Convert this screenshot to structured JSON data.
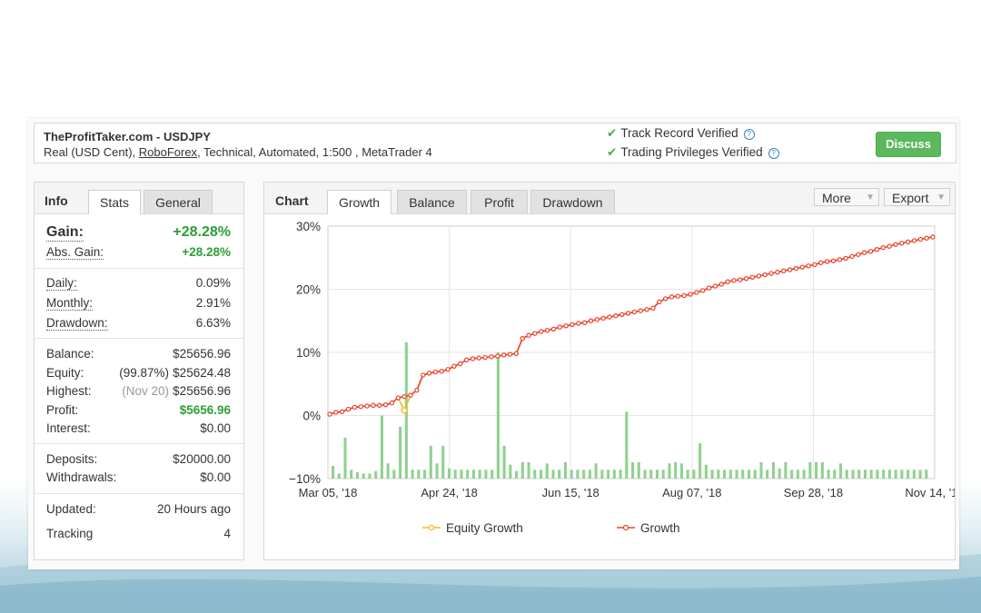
{
  "header": {
    "title": "TheProfitTaker.com - USDJPY",
    "subtitle_prefix": "Real (USD Cent), ",
    "broker_link": "RoboForex",
    "subtitle_suffix": ", Technical, Automated, 1:500 , MetaTrader 4",
    "verification": [
      "Track Record Verified",
      "Trading Privileges Verified"
    ],
    "discuss_label": "Discuss"
  },
  "left_tabs": {
    "heading": "Info",
    "tabs": [
      "Stats",
      "General"
    ],
    "active": "Stats"
  },
  "stats": {
    "gain": {
      "label": "Gain:",
      "value": "+28.28%"
    },
    "abs_gain": {
      "label": "Abs. Gain:",
      "value": "+28.28%"
    },
    "daily": {
      "label": "Daily:",
      "value": "0.09%"
    },
    "monthly": {
      "label": "Monthly:",
      "value": "2.91%"
    },
    "drawdown": {
      "label": "Drawdown:",
      "value": "6.63%"
    },
    "balance": {
      "label": "Balance:",
      "value": "$25656.96"
    },
    "equity": {
      "label": "Equity:",
      "pct": "(99.87%)",
      "value": "$25624.48"
    },
    "highest": {
      "label": "Highest:",
      "pct": "(Nov 20)",
      "value": "$25656.96"
    },
    "profit": {
      "label": "Profit:",
      "value": "$5656.96"
    },
    "interest": {
      "label": "Interest:",
      "value": "$0.00"
    },
    "deposits": {
      "label": "Deposits:",
      "value": "$20000.00"
    },
    "withdrawals": {
      "label": "Withdrawals:",
      "value": "$0.00"
    },
    "updated": {
      "label": "Updated:",
      "value": "20 Hours ago"
    },
    "tracking": {
      "label": "Tracking",
      "value": "4"
    }
  },
  "right_tabs": {
    "heading": "Chart",
    "tabs": [
      "Growth",
      "Balance",
      "Profit",
      "Drawdown"
    ],
    "active": "Growth",
    "more_label": "More",
    "export_label": "Export"
  },
  "colors": {
    "growth": "#e8452c",
    "equity": "#f5b922",
    "bars": "#8fd18f",
    "accent": "#5cb85c"
  },
  "chart_data": {
    "type": "line",
    "x_tick_labels": [
      "Mar 05, '18",
      "Apr 24, '18",
      "Jun 15, '18",
      "Aug 07, '18",
      "Sep 28, '18",
      "Nov 14, '18"
    ],
    "y_tick_labels": [
      "30%",
      "20%",
      "10%",
      "0%",
      "−10%"
    ],
    "ylim": [
      -10,
      30
    ],
    "grid": true,
    "legend_position": "bottom",
    "series": [
      {
        "name": "Growth",
        "values": [
          0.2,
          0.5,
          0.6,
          1.0,
          1.3,
          1.4,
          1.5,
          1.6,
          1.6,
          1.7,
          2.0,
          2.8,
          3.0,
          3.2,
          4.0,
          6.4,
          6.7,
          6.9,
          7.0,
          7.3,
          7.8,
          8.2,
          8.8,
          9.0,
          9.1,
          9.2,
          9.3,
          9.4,
          9.6,
          9.7,
          9.8,
          12.2,
          12.7,
          13.0,
          13.3,
          13.5,
          13.7,
          14.0,
          14.2,
          14.4,
          14.6,
          14.7,
          15.0,
          15.2,
          15.4,
          15.6,
          15.8,
          16.0,
          16.2,
          16.4,
          16.6,
          16.8,
          17.0,
          18.0,
          18.5,
          18.8,
          18.9,
          19.0,
          19.2,
          19.5,
          19.8,
          20.2,
          20.5,
          20.8,
          21.2,
          21.4,
          21.5,
          21.7,
          21.9,
          22.1,
          22.3,
          22.5,
          22.7,
          22.9,
          23.1,
          23.3,
          23.5,
          23.7,
          23.9,
          24.2,
          24.4,
          24.5,
          24.7,
          24.9,
          25.2,
          25.5,
          25.8,
          26.0,
          26.3,
          26.6,
          26.8,
          27.1,
          27.3,
          27.5,
          27.7,
          27.9,
          28.1,
          28.28
        ]
      },
      {
        "name": "Equity Growth",
        "values": [
          0.2,
          0.5,
          0.6,
          1.0,
          1.3,
          1.4,
          1.5,
          1.6,
          1.6,
          1.7,
          2.0,
          2.8,
          0.8,
          3.2,
          4.0,
          6.4,
          6.7,
          6.9,
          7.0,
          7.3,
          7.8,
          8.2,
          8.8,
          9.0,
          9.1,
          9.2,
          9.3,
          9.4,
          9.6,
          9.7,
          9.8,
          12.2,
          12.7,
          13.0,
          13.3,
          13.5,
          13.7,
          14.0,
          14.2,
          14.4,
          14.6,
          14.7,
          15.0,
          15.2,
          15.4,
          15.6,
          15.8,
          16.0,
          16.2,
          16.4,
          16.6,
          16.8,
          17.0,
          18.0,
          18.5,
          18.8,
          18.9,
          19.0,
          19.2,
          19.5,
          19.8,
          20.2,
          20.5,
          20.8,
          21.2,
          21.4,
          21.5,
          21.7,
          21.9,
          22.1,
          22.3,
          22.5,
          22.7,
          22.9,
          23.1,
          23.3,
          23.5,
          23.7,
          23.9,
          24.2,
          24.4,
          24.5,
          24.7,
          24.9,
          25.2,
          25.5,
          25.8,
          26.0,
          26.3,
          26.6,
          26.8,
          27.1,
          27.3,
          27.5,
          27.7,
          27.9,
          28.1,
          28.28
        ]
      }
    ],
    "bars": {
      "values": [
        -8.0,
        -9.2,
        -3.5,
        -8.6,
        -9.0,
        -9.2,
        -9.2,
        -8.8,
        0.0,
        -7.6,
        -8.6,
        -1.8,
        11.6,
        -8.6,
        -8.6,
        -8.6,
        -4.8,
        -7.6,
        -4.8,
        -8.4,
        -8.6,
        -8.6,
        -8.6,
        -8.6,
        -8.6,
        -8.6,
        -8.6,
        10.0,
        -4.8,
        -7.8,
        -8.8,
        -7.4,
        -7.4,
        -8.6,
        -8.6,
        -7.6,
        -8.6,
        -8.6,
        -7.4,
        -8.6,
        -8.6,
        -8.6,
        -8.6,
        -7.6,
        -8.6,
        -8.6,
        -8.6,
        -8.6,
        0.6,
        -7.4,
        -7.4,
        -8.6,
        -8.6,
        -8.6,
        -8.6,
        -7.6,
        -7.4,
        -7.6,
        -8.6,
        -8.6,
        -4.4,
        -7.8,
        -8.6,
        -8.6,
        -8.6,
        -8.6,
        -8.6,
        -8.6,
        -8.6,
        -8.6,
        -7.4,
        -8.6,
        -7.4,
        -8.4,
        -7.4,
        -8.6,
        -8.6,
        -8.6,
        -7.4,
        -7.4,
        -7.4,
        -8.6,
        -8.6,
        -7.6,
        -8.6,
        -8.6,
        -8.6,
        -8.6,
        -8.6,
        -8.6,
        -8.6,
        -8.6,
        -8.6,
        -8.6,
        -8.6,
        -8.6,
        -8.6,
        -8.6
      ]
    }
  }
}
